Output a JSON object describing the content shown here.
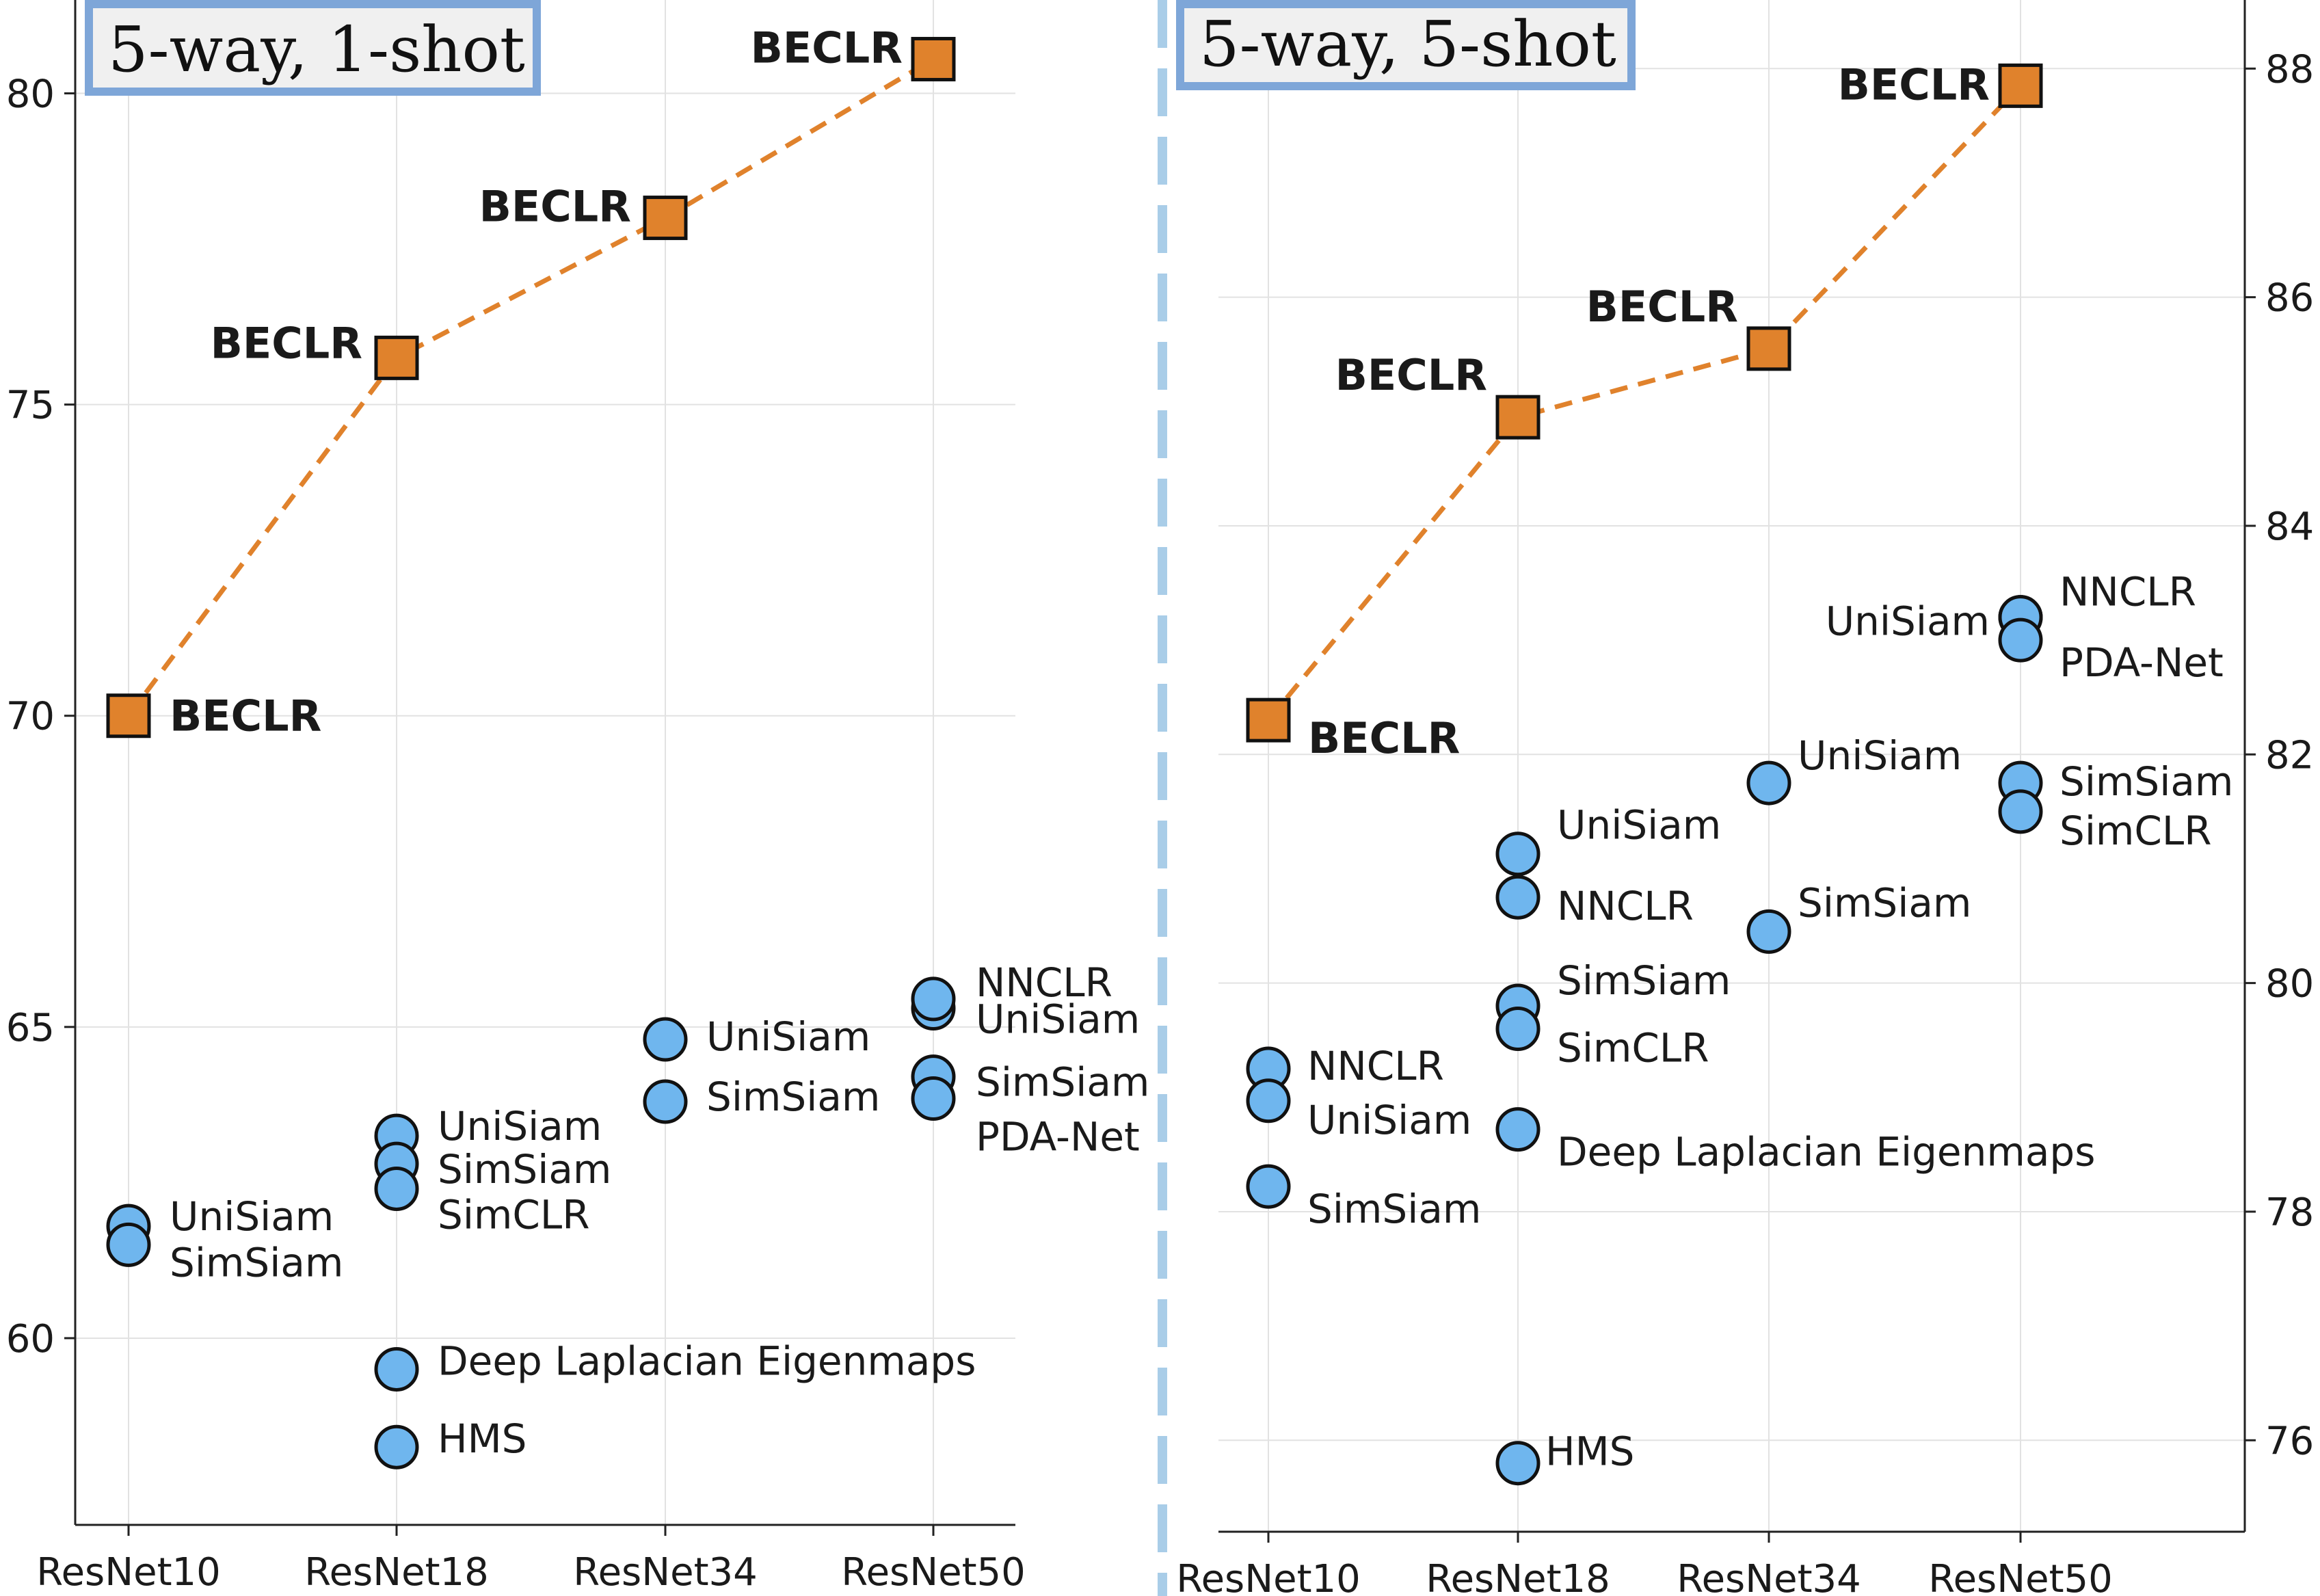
{
  "colors": {
    "beclr_fill": "#e0822c",
    "beclr_line": "#e0822c",
    "baseline_fill": "#6fb6ee",
    "marker_edge": "#111111",
    "title_box_border": "#7ea6d8",
    "title_box_fill": "#f0f0f0",
    "divider": "#a9cde8",
    "grid": "#e2e2e2"
  },
  "chart_data": [
    {
      "type": "scatter",
      "title": "5-way, 1-shot",
      "categories": [
        "ResNet10",
        "ResNet18",
        "ResNet34",
        "ResNet50"
      ],
      "ylim": [
        57.0,
        81.5
      ],
      "yticks": [
        60,
        65,
        70,
        75,
        80
      ],
      "y_axis_side": "left",
      "grid": true,
      "beclr": {
        "label": "BECLR",
        "values": [
          70.0,
          75.75,
          78.0,
          80.55
        ]
      },
      "baselines": [
        {
          "category": "ResNet10",
          "value": 61.8,
          "label": "UniSiam"
        },
        {
          "category": "ResNet10",
          "value": 61.5,
          "label": "SimSiam"
        },
        {
          "category": "ResNet18",
          "value": 63.25,
          "label": "UniSiam"
        },
        {
          "category": "ResNet18",
          "value": 62.8,
          "label": "SimSiam"
        },
        {
          "category": "ResNet18",
          "value": 62.4,
          "label": "SimCLR"
        },
        {
          "category": "ResNet18",
          "value": 59.5,
          "label": "Deep Laplacian Eigenmaps"
        },
        {
          "category": "ResNet18",
          "value": 58.25,
          "label": "HMS"
        },
        {
          "category": "ResNet34",
          "value": 64.8,
          "label": "UniSiam"
        },
        {
          "category": "ResNet34",
          "value": 63.8,
          "label": "SimSiam"
        },
        {
          "category": "ResNet50",
          "value": 65.3,
          "label": "UniSiam"
        },
        {
          "category": "ResNet50",
          "value": 65.45,
          "label": "NNCLR"
        },
        {
          "category": "ResNet50",
          "value": 64.2,
          "label": "SimSiam"
        },
        {
          "category": "ResNet50",
          "value": 63.85,
          "label": "PDA-Net"
        }
      ]
    },
    {
      "type": "scatter",
      "title": "5-way, 5-shot",
      "categories": [
        "ResNet10",
        "ResNet18",
        "ResNet34",
        "ResNet50"
      ],
      "ylim": [
        75.2,
        88.6
      ],
      "yticks": [
        76,
        78,
        80,
        82,
        84,
        86,
        88
      ],
      "y_axis_side": "right",
      "grid": true,
      "beclr": {
        "label": "BECLR",
        "values": [
          82.3,
          84.95,
          85.55,
          87.85
        ]
      },
      "baselines": [
        {
          "category": "ResNet10",
          "value": 79.25,
          "label": "NNCLR"
        },
        {
          "category": "ResNet10",
          "value": 78.97,
          "label": "UniSiam"
        },
        {
          "category": "ResNet10",
          "value": 78.22,
          "label": "SimSiam"
        },
        {
          "category": "ResNet18",
          "value": 81.13,
          "label": "UniSiam"
        },
        {
          "category": "ResNet18",
          "value": 80.75,
          "label": "NNCLR"
        },
        {
          "category": "ResNet18",
          "value": 79.8,
          "label": "SimSiam"
        },
        {
          "category": "ResNet18",
          "value": 79.6,
          "label": "SimCLR"
        },
        {
          "category": "ResNet18",
          "value": 78.72,
          "label": "Deep Laplacian Eigenmaps"
        },
        {
          "category": "ResNet18",
          "value": 75.8,
          "label": "HMS"
        },
        {
          "category": "ResNet34",
          "value": 81.75,
          "label": "UniSiam"
        },
        {
          "category": "ResNet34",
          "value": 80.45,
          "label": "SimSiam"
        },
        {
          "category": "ResNet50",
          "value": 83.2,
          "label": "UniSiam"
        },
        {
          "category": "ResNet50",
          "value": 83.2,
          "label": "NNCLR"
        },
        {
          "category": "ResNet50",
          "value": 83.0,
          "label": "PDA-Net"
        },
        {
          "category": "ResNet50",
          "value": 81.75,
          "label": "SimSiam"
        },
        {
          "category": "ResNet50",
          "value": 81.5,
          "label": "SimCLR"
        }
      ]
    }
  ]
}
